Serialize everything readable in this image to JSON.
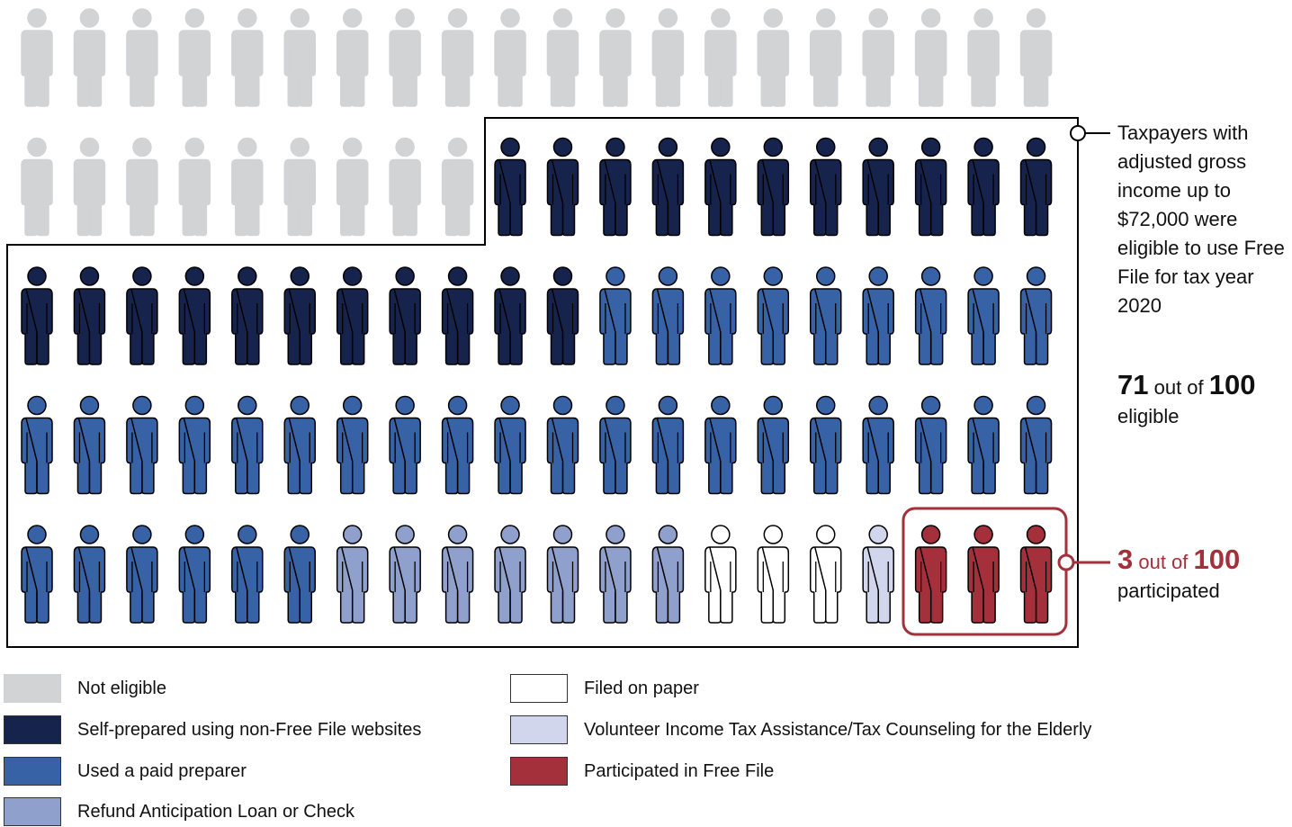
{
  "chart_data": {
    "type": "pictograph",
    "total": 100,
    "categories": [
      {
        "key": "not_eligible",
        "label": "Not eligible",
        "count": 29,
        "color": "#d2d3d5",
        "border": "#d2d3d5"
      },
      {
        "key": "self_prepared",
        "label": "Self-prepared using non-Free File websites",
        "count": 22,
        "color": "#16244d",
        "border": "#000000"
      },
      {
        "key": "paid_preparer",
        "label": "Used a paid preparer",
        "count": 35,
        "color": "#3862a6",
        "border": "#000000"
      },
      {
        "key": "refund_loan",
        "label": "Refund Anticipation Loan or Check",
        "count": 7,
        "color": "#8fa0cc",
        "border": "#000000"
      },
      {
        "key": "paper",
        "label": "Filed on paper",
        "count": 3,
        "color": "#ffffff",
        "border": "#000000"
      },
      {
        "key": "vita",
        "label": "Volunteer Income Tax Assistance/Tax Counseling for the Elderly",
        "count": 1,
        "color": "#d1d6ec",
        "border": "#000000"
      },
      {
        "key": "free_file",
        "label": "Participated in Free File",
        "count": 3,
        "color": "#a3303a",
        "border": "#000000"
      }
    ],
    "colors": {
      "accent": "#a3303a",
      "outline": "#000000"
    }
  },
  "annotations": {
    "eligible_text": "Taxpayers with adjusted gross income up to $72,000 were eligible to use Free File for tax year 2020",
    "eligible_num": "71",
    "eligible_mid": " out of ",
    "eligible_total": "100",
    "eligible_label": "eligible",
    "part_num": "3",
    "part_mid": " out of ",
    "part_total": "100",
    "part_label": "participated"
  }
}
